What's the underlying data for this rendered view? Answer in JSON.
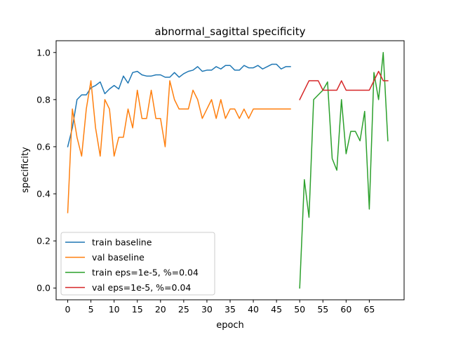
{
  "chart_data": {
    "type": "line",
    "title": "abnormal_sagittal specificity",
    "xlabel": "epoch",
    "ylabel": "specificity",
    "xlim": [
      -2.5,
      72.5
    ],
    "ylim": [
      -0.05,
      1.05
    ],
    "xticks": [
      0,
      5,
      10,
      15,
      20,
      25,
      30,
      35,
      40,
      45,
      50,
      55,
      60,
      65
    ],
    "yticks": [
      0.0,
      0.2,
      0.4,
      0.6,
      0.8,
      1.0
    ],
    "ytick_labels": [
      "0.0",
      "0.2",
      "0.4",
      "0.6",
      "0.8",
      "1.0"
    ],
    "grid": false,
    "legend_position": "lower-left",
    "series": [
      {
        "name": "train baseline",
        "color": "#1f77b4",
        "x_start": 0,
        "values": [
          0.6,
          0.68,
          0.8,
          0.82,
          0.82,
          0.85,
          0.86,
          0.875,
          0.825,
          0.845,
          0.86,
          0.845,
          0.9,
          0.87,
          0.915,
          0.92,
          0.905,
          0.9,
          0.9,
          0.905,
          0.905,
          0.895,
          0.895,
          0.915,
          0.895,
          0.91,
          0.92,
          0.925,
          0.94,
          0.92,
          0.925,
          0.925,
          0.94,
          0.93,
          0.945,
          0.945,
          0.925,
          0.925,
          0.945,
          0.935,
          0.935,
          0.945,
          0.93,
          0.94,
          0.95,
          0.95,
          0.93,
          0.94,
          0.94
        ]
      },
      {
        "name": "val baseline",
        "color": "#ff7f0e",
        "x_start": 0,
        "values": [
          0.32,
          0.76,
          0.64,
          0.56,
          0.76,
          0.88,
          0.68,
          0.56,
          0.8,
          0.76,
          0.56,
          0.64,
          0.64,
          0.76,
          0.68,
          0.84,
          0.72,
          0.72,
          0.84,
          0.72,
          0.72,
          0.6,
          0.88,
          0.8,
          0.76,
          0.76,
          0.76,
          0.84,
          0.8,
          0.72,
          0.76,
          0.8,
          0.72,
          0.8,
          0.72,
          0.76,
          0.76,
          0.72,
          0.76,
          0.72,
          0.76,
          0.76,
          0.76,
          0.76,
          0.76,
          0.76,
          0.76,
          0.76,
          0.76
        ]
      },
      {
        "name": "train eps=1e-5, %=0.04",
        "color": "#2ca02c",
        "x_start": 50,
        "values": [
          0.0,
          0.46,
          0.3,
          0.8,
          0.82,
          0.84,
          0.875,
          0.55,
          0.5,
          0.8,
          0.57,
          0.665,
          0.665,
          0.625,
          0.75,
          0.335,
          0.915,
          0.8,
          1.0,
          0.625
        ]
      },
      {
        "name": "val eps=1e-5, %=0.04",
        "color": "#d62728",
        "x_start": 50,
        "values": [
          0.8,
          0.84,
          0.88,
          0.88,
          0.88,
          0.84,
          0.84,
          0.84,
          0.84,
          0.88,
          0.84,
          0.84,
          0.84,
          0.84,
          0.84,
          0.84,
          0.88,
          0.92,
          0.88,
          0.88
        ]
      }
    ]
  }
}
